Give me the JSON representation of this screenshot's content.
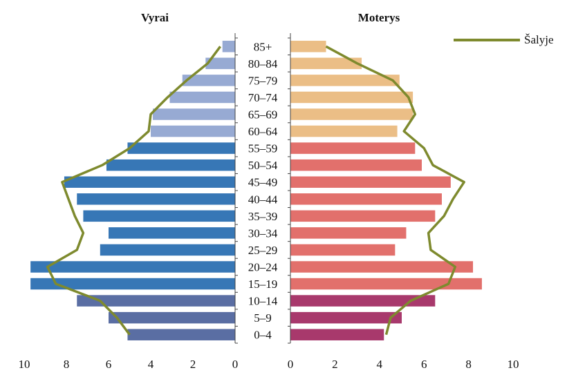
{
  "chart_data": {
    "type": "bar",
    "subtype": "population-pyramid",
    "categories": [
      "0–4",
      "5–9",
      "10–14",
      "15–19",
      "20–24",
      "25–29",
      "30–34",
      "35–39",
      "40–44",
      "45–49",
      "50–54",
      "55–59",
      "60–64",
      "65–69",
      "70–74",
      "75–79",
      "80–84",
      "85+"
    ],
    "left_title": "Vyrai",
    "right_title": "Moterys",
    "series": [
      {
        "group": "Vyrai",
        "values": [
          5.1,
          6.0,
          7.5,
          9.7,
          9.7,
          6.4,
          6.0,
          7.2,
          7.5,
          8.1,
          6.1,
          5.1,
          4.0,
          3.9,
          3.1,
          2.5,
          1.4,
          0.6
        ]
      },
      {
        "group": "Moterys",
        "values": [
          4.2,
          5.0,
          6.5,
          8.6,
          8.2,
          4.7,
          5.2,
          6.5,
          6.8,
          7.2,
          5.9,
          5.6,
          4.8,
          5.5,
          5.5,
          4.9,
          3.2,
          1.6
        ]
      },
      {
        "name": "Šalyje",
        "group": "Vyrai",
        "values": [
          5.0,
          5.6,
          6.4,
          8.5,
          8.9,
          7.5,
          7.2,
          7.6,
          7.9,
          8.2,
          6.3,
          5.0,
          4.1,
          4.0,
          3.2,
          2.3,
          1.3,
          0.7
        ]
      },
      {
        "name": "Šalyje",
        "group": "Moterys",
        "values": [
          4.3,
          4.5,
          5.4,
          7.1,
          7.4,
          6.3,
          6.2,
          6.9,
          7.3,
          7.8,
          6.4,
          6.0,
          5.1,
          5.6,
          5.3,
          4.6,
          3.0,
          1.6
        ]
      }
    ],
    "xlim": [
      0,
      10
    ],
    "ticks": [
      "0",
      "2",
      "4",
      "6",
      "8",
      "10"
    ],
    "legend": {
      "label": "Šalyje",
      "placement": "top-right"
    },
    "grid": false,
    "colors": {
      "men_young": "#5a6ea3",
      "men_mid": "#3777b6",
      "men_old": "#97aad3",
      "women_young": "#a8396c",
      "women_mid": "#e2706c",
      "women_old": "#ebbe86",
      "line": "#7e8a2e"
    }
  }
}
